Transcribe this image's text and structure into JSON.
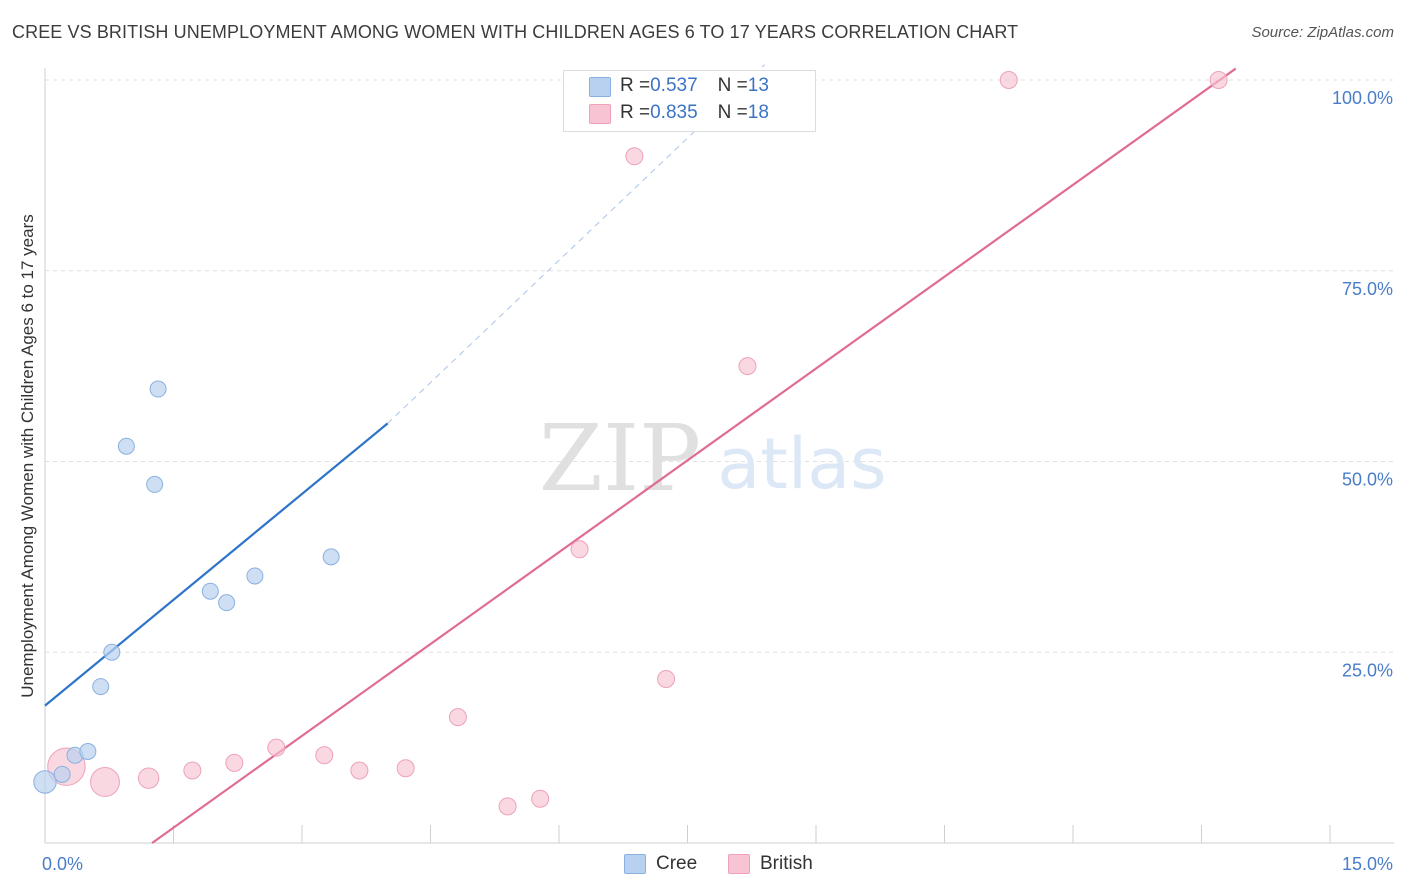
{
  "title": "CREE VS BRITISH UNEMPLOYMENT AMONG WOMEN WITH CHILDREN AGES 6 TO 17 YEARS CORRELATION CHART",
  "source": "Source: ZipAtlas.com",
  "watermark": {
    "zip": "ZIP",
    "atlas": "atlas"
  },
  "legend": {
    "rows": [
      {
        "r_label": "R = ",
        "r_value": "0.537",
        "n_label": "N = ",
        "n_value": "13"
      },
      {
        "r_label": "R = ",
        "r_value": "0.835",
        "n_label": "N = ",
        "n_value": "18"
      }
    ]
  },
  "colors": {
    "cree_fill": "#b9d1f0",
    "cree_stroke": "#8ab0e0",
    "cree_line": "#2e74c9",
    "british_fill": "#f8c3d3",
    "british_stroke": "#eda2b9",
    "british_line": "#e06c93",
    "axis_text": "#4a7dc9",
    "grid": "#e0e0e0"
  },
  "chart_data": {
    "type": "scatter",
    "title": "CREE VS BRITISH UNEMPLOYMENT AMONG WOMEN WITH CHILDREN AGES 6 TO 17 YEARS CORRELATION CHART",
    "xlabel": "",
    "ylabel": "Unemployment Among Women with Children Ages 6 to 17 years",
    "xlim": [
      0,
      15
    ],
    "ylim": [
      0,
      102
    ],
    "x_tick_labels": [
      "0.0%",
      "15.0%"
    ],
    "y_ticks": [
      25,
      50,
      75,
      100
    ],
    "y_tick_labels": [
      "25.0%",
      "50.0%",
      "75.0%",
      "100.0%"
    ],
    "legend_position": "top-center",
    "series": [
      {
        "name": "Cree",
        "r": 0.537,
        "n": 13,
        "points": [
          {
            "x": 0.0,
            "y": 8.0,
            "size": 1.4
          },
          {
            "x": 0.2,
            "y": 9.0,
            "size": 1.0
          },
          {
            "x": 0.35,
            "y": 11.5,
            "size": 1.0
          },
          {
            "x": 0.5,
            "y": 12.0,
            "size": 1.0
          },
          {
            "x": 0.65,
            "y": 20.5,
            "size": 1.0
          },
          {
            "x": 0.78,
            "y": 25.0,
            "size": 1.0
          },
          {
            "x": 0.95,
            "y": 52.0,
            "size": 1.0
          },
          {
            "x": 1.28,
            "y": 47.0,
            "size": 1.0
          },
          {
            "x": 1.32,
            "y": 59.5,
            "size": 1.0
          },
          {
            "x": 1.93,
            "y": 33.0,
            "size": 1.0
          },
          {
            "x": 2.12,
            "y": 31.5,
            "size": 1.0
          },
          {
            "x": 2.45,
            "y": 35.0,
            "size": 1.0
          },
          {
            "x": 3.34,
            "y": 37.5,
            "size": 1.0
          }
        ],
        "trend_solid": {
          "x0": 0.0,
          "y0": 18.0,
          "x1": 4.0,
          "y1": 55.0
        },
        "trend_dashed": {
          "x0": 4.0,
          "y0": 55.0,
          "x1": 8.4,
          "y1": 102.0
        }
      },
      {
        "name": "British",
        "r": 0.835,
        "n": 18,
        "points": [
          {
            "x": 0.25,
            "y": 10.0,
            "size": 2.2
          },
          {
            "x": 0.7,
            "y": 8.0,
            "size": 1.7
          },
          {
            "x": 1.21,
            "y": 8.5,
            "size": 1.2
          },
          {
            "x": 1.72,
            "y": 9.5,
            "size": 1.0
          },
          {
            "x": 2.21,
            "y": 10.5,
            "size": 1.0
          },
          {
            "x": 2.7,
            "y": 12.5,
            "size": 1.0
          },
          {
            "x": 3.26,
            "y": 11.5,
            "size": 1.0
          },
          {
            "x": 3.67,
            "y": 9.5,
            "size": 1.0
          },
          {
            "x": 4.21,
            "y": 9.8,
            "size": 1.0
          },
          {
            "x": 4.82,
            "y": 16.5,
            "size": 1.0
          },
          {
            "x": 5.4,
            "y": 4.8,
            "size": 1.0
          },
          {
            "x": 5.78,
            "y": 5.8,
            "size": 1.0
          },
          {
            "x": 6.24,
            "y": 38.5,
            "size": 1.0
          },
          {
            "x": 6.88,
            "y": 90.0,
            "size": 1.0
          },
          {
            "x": 7.25,
            "y": 21.5,
            "size": 1.0
          },
          {
            "x": 8.2,
            "y": 62.5,
            "size": 1.0
          },
          {
            "x": 11.25,
            "y": 100.0,
            "size": 1.0
          },
          {
            "x": 13.7,
            "y": 100.0,
            "size": 1.0
          }
        ],
        "trend_solid": {
          "x0": 1.25,
          "y0": 0.0,
          "x1": 13.9,
          "y1": 101.5
        }
      }
    ]
  }
}
